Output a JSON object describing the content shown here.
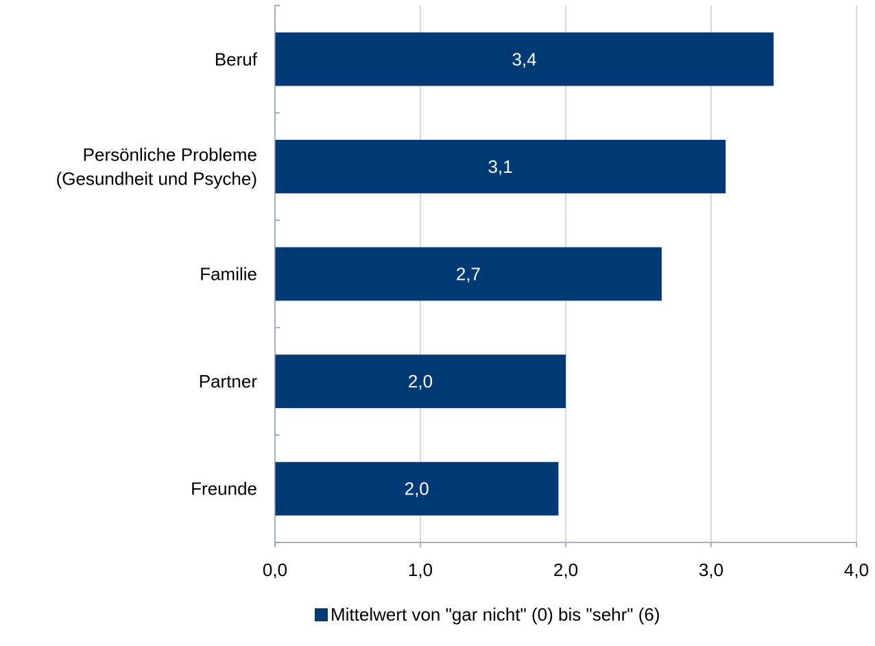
{
  "chart_data": {
    "type": "bar",
    "orientation": "horizontal",
    "categories": [
      "Beruf",
      "Persönliche Probleme (Gesundheit und Psyche)",
      "Familie",
      "Partner",
      "Freunde"
    ],
    "category_label_lines": [
      [
        "Beruf"
      ],
      [
        "Persönliche Probleme",
        "(Gesundheit und Psyche)"
      ],
      [
        "Familie"
      ],
      [
        "Partner"
      ],
      [
        "Freunde"
      ]
    ],
    "values": [
      3.43,
      3.1,
      2.66,
      2.0,
      1.95
    ],
    "data_labels": [
      "3,4",
      "3,1",
      "2,7",
      "2,0",
      "2,0"
    ],
    "xlim": [
      0,
      4
    ],
    "xticks": [
      0,
      1,
      2,
      3,
      4
    ],
    "xtick_labels": [
      "0,0",
      "1,0",
      "2,0",
      "3,0",
      "4,0"
    ],
    "grid": "vertical",
    "legend": {
      "placement": "bottom",
      "entries": [
        {
          "name": "Mittelwert von \"gar nicht\" (0) bis \"sehr\" (6)",
          "color": "#003a75"
        }
      ]
    },
    "colors": {
      "bar": "#003a75",
      "grid": "#c8ccd6",
      "axis": "#8a93b8"
    }
  }
}
